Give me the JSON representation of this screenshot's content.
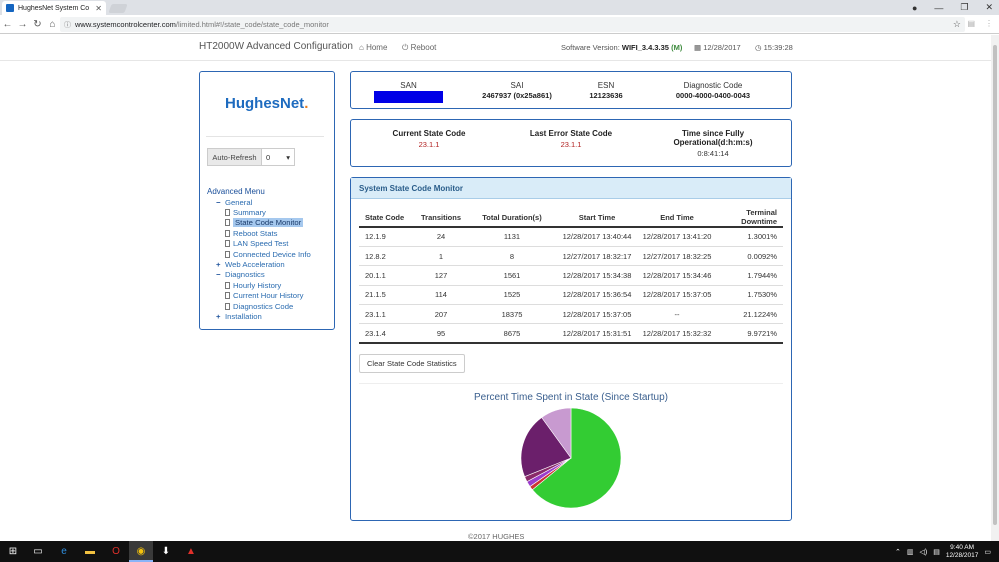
{
  "browser": {
    "tab_title": "HughesNet System Co",
    "url_host": "www.systemcontrolcenter.com",
    "url_path": "/limited.html#!/state_code/state_code_monitor"
  },
  "topnav": {
    "brand": "HT2000W Advanced Configuration",
    "home": "Home",
    "reboot": "Reboot",
    "software_label": "Software Version:",
    "software_value": "WIFI_3.4.3.35",
    "software_suffix": "(M)",
    "date": "12/28/2017",
    "time": "15:39:28"
  },
  "sidebar": {
    "logo": "HughesNet",
    "logo_dot": ".",
    "auto_refresh_label": "Auto-Refresh",
    "auto_refresh_value": "0",
    "menu_title": "Advanced Menu",
    "items": [
      {
        "label": "General",
        "sign": "−"
      },
      {
        "label": "Summary"
      },
      {
        "label": "State Code Monitor"
      },
      {
        "label": "Reboot Stats"
      },
      {
        "label": "LAN Speed Test"
      },
      {
        "label": "Connected Device Info"
      },
      {
        "label": "Web Acceleration",
        "sign": "+"
      },
      {
        "label": "Diagnostics",
        "sign": "−"
      },
      {
        "label": "Hourly History"
      },
      {
        "label": "Current Hour History"
      },
      {
        "label": "Diagnostics Code"
      },
      {
        "label": "Installation",
        "sign": "+"
      }
    ]
  },
  "ids": {
    "san_label": "SAN",
    "sai_label": "SAI",
    "sai_value": "2467937 (0x25a861)",
    "esn_label": "ESN",
    "esn_value": "12123636",
    "diag_label": "Diagnostic Code",
    "diag_value": "0000-4000-0400-0043"
  },
  "state": {
    "current_label": "Current State Code",
    "current_value": "23.1.1",
    "last_error_label": "Last Error State Code",
    "last_error_value": "23.1.1",
    "time_label_1": "Time since Fully",
    "time_label_2": "Operational(d:h:m:s)",
    "time_value": "0:8:41:14"
  },
  "monitor": {
    "title": "System State Code Monitor",
    "headers": [
      "State Code",
      "Transitions",
      "Total Duration(s)",
      "Start Time",
      "End Time",
      "Terminal Downtime"
    ],
    "rows": [
      [
        "12.1.9",
        "24",
        "1131",
        "12/28/2017 13:40:44",
        "12/28/2017 13:41:20",
        "1.3001%"
      ],
      [
        "12.8.2",
        "1",
        "8",
        "12/27/2017 18:32:17",
        "12/27/2017 18:32:25",
        "0.0092%"
      ],
      [
        "20.1.1",
        "127",
        "1561",
        "12/28/2017 15:34:38",
        "12/28/2017 15:34:46",
        "1.7944%"
      ],
      [
        "21.1.5",
        "114",
        "1525",
        "12/28/2017 15:36:54",
        "12/28/2017 15:37:05",
        "1.7530%"
      ],
      [
        "23.1.1",
        "207",
        "18375",
        "12/28/2017 15:37:05",
        "--",
        "21.1224%"
      ],
      [
        "23.1.4",
        "95",
        "8675",
        "12/28/2017 15:31:51",
        "12/28/2017 15:32:32",
        "9.9721%"
      ]
    ],
    "clear_button": "Clear State Code Statistics",
    "pie_title": "Percent Time Spent in State (Since Startup)"
  },
  "chart_data": {
    "type": "pie",
    "title": "Percent Time Spent in State (Since Startup)",
    "slices": [
      {
        "value": 64.06,
        "color": "#33cc33"
      },
      {
        "value": 1.3001,
        "color": "#cc3333"
      },
      {
        "value": 0.0092,
        "color": "#e07b00"
      },
      {
        "value": 1.7944,
        "color": "#9b3ccc"
      },
      {
        "value": 1.753,
        "color": "#8a2a6a"
      },
      {
        "value": 21.1224,
        "color": "#6b1f6b"
      },
      {
        "value": 9.9721,
        "color": "#c89ad0"
      }
    ]
  },
  "footer": "©2017 HUGHES",
  "taskbar": {
    "time": "9:40 AM",
    "date": "12/28/2017"
  }
}
